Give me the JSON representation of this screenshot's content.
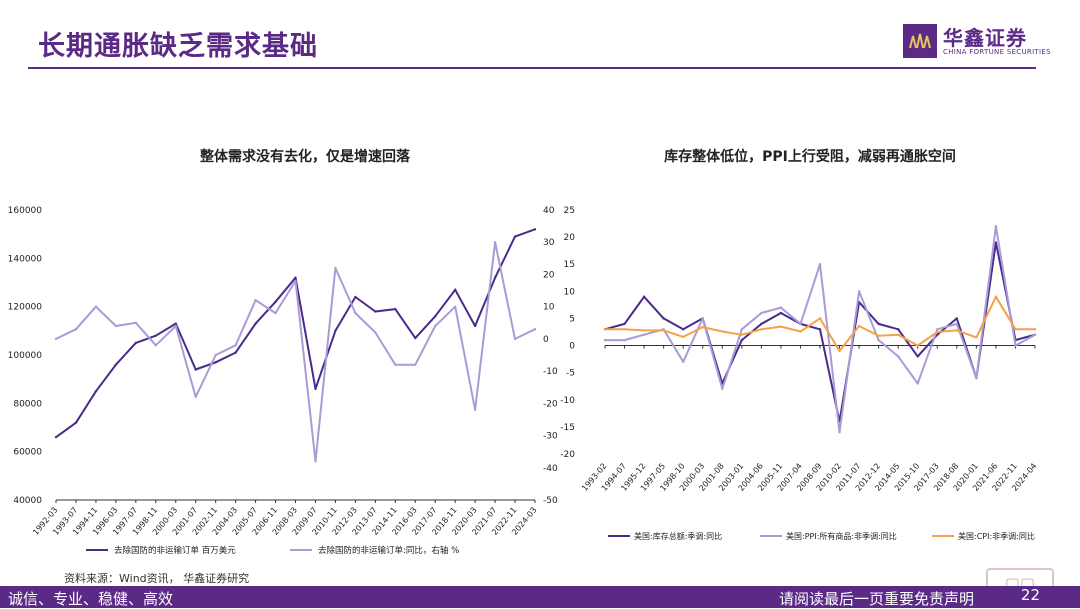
{
  "header": {
    "title": "长期通胀缺乏需求基础",
    "logo_cn": "华鑫证券",
    "logo_en": "CHINA FORTUNE SECURITIES"
  },
  "source_note": "资料来源：Wind资讯， 华鑫证券研究",
  "footer": {
    "slogan": "诚信、专业、稳健、高效",
    "disclaimer": "请阅读最后一页重要免责声明",
    "page_number": "22",
    "brand_color": "#5b2a86"
  },
  "chart_data": [
    {
      "type": "line",
      "title": "整体需求没有去化，仅是增速回落",
      "x": [
        "1992-03",
        "1993-07",
        "1994-11",
        "1996-03",
        "1997-07",
        "1998-11",
        "2000-03",
        "2001-07",
        "2002-11",
        "2004-03",
        "2005-07",
        "2006-11",
        "2008-03",
        "2009-07",
        "2010-11",
        "2012-03",
        "2013-07",
        "2014-11",
        "2016-03",
        "2017-07",
        "2018-11",
        "2020-03",
        "2021-07",
        "2022-11",
        "2024-03"
      ],
      "y_left": {
        "min": 40000,
        "max": 160000,
        "ticks": [
          "160000",
          "140000",
          "120000",
          "100000",
          "80000",
          "60000",
          "40000"
        ]
      },
      "y_right": {
        "min": -50,
        "max": 40,
        "ticks": [
          "40",
          "30",
          "20",
          "10",
          "0",
          "-10",
          "-20",
          "-30",
          "-40",
          "-50"
        ]
      },
      "series": [
        {
          "name": "去除国防的非运输订单 百万美元",
          "axis": "left",
          "color": "#4b2a8a",
          "values": [
            66000,
            72000,
            85000,
            96000,
            105000,
            108000,
            113000,
            94000,
            97000,
            101000,
            113000,
            122000,
            132000,
            86000,
            110000,
            124000,
            118000,
            119000,
            107000,
            116000,
            127000,
            112000,
            132000,
            149000,
            152000
          ]
        },
        {
          "name": "去除国防的非运输订单:同比，右轴 %",
          "axis": "right",
          "color": "#a99bd6",
          "values": [
            0,
            3,
            10,
            4,
            5,
            -2,
            4,
            -18,
            -5,
            -2,
            12,
            8,
            18,
            -38,
            22,
            8,
            2,
            -8,
            -8,
            4,
            10,
            -22,
            30,
            0,
            3
          ]
        }
      ],
      "legend": "bottom"
    },
    {
      "type": "line",
      "title": "库存整体低位，PPI上行受阻，减弱再通胀空间",
      "x": [
        "1993-02",
        "1994-07",
        "1995-12",
        "1997-05",
        "1998-10",
        "2000-03",
        "2001-08",
        "2003-01",
        "2004-06",
        "2005-11",
        "2007-04",
        "2008-09",
        "2010-02",
        "2011-07",
        "2012-12",
        "2014-05",
        "2015-10",
        "2017-03",
        "2018-08",
        "2020-01",
        "2021-06",
        "2022-11",
        "2024-04"
      ],
      "y": {
        "min": -20,
        "max": 25,
        "ticks": [
          "25",
          "20",
          "15",
          "10",
          "5",
          "0",
          "-5",
          "-10",
          "-15",
          "-20"
        ]
      },
      "series": [
        {
          "name": "美国:库存总额:季调:同比",
          "color": "#4b2a8a",
          "values": [
            3,
            4,
            9,
            5,
            3,
            5,
            -7,
            1,
            4,
            6,
            4,
            3,
            -14,
            8,
            4,
            3,
            -2,
            2,
            5,
            -6,
            19,
            1,
            2
          ]
        },
        {
          "name": "美国:PPI:所有商品:非季调:同比",
          "color": "#a99bd6",
          "values": [
            1,
            1,
            2,
            3,
            -3,
            5,
            -8,
            3,
            6,
            7,
            4,
            15,
            -16,
            10,
            1,
            -2,
            -7,
            3,
            4,
            -6,
            22,
            0,
            2
          ]
        },
        {
          "name": "美国:CPI:非季调:同比",
          "color": "#f4a24a",
          "values": [
            3,
            3,
            2.8,
            2.8,
            1.6,
            3.4,
            2.6,
            2,
            3,
            3.5,
            2.6,
            5,
            -1,
            3.6,
            1.8,
            2,
            0,
            2.5,
            2.8,
            1.5,
            9,
            3,
            3
          ]
        }
      ],
      "legend": "bottom"
    }
  ]
}
